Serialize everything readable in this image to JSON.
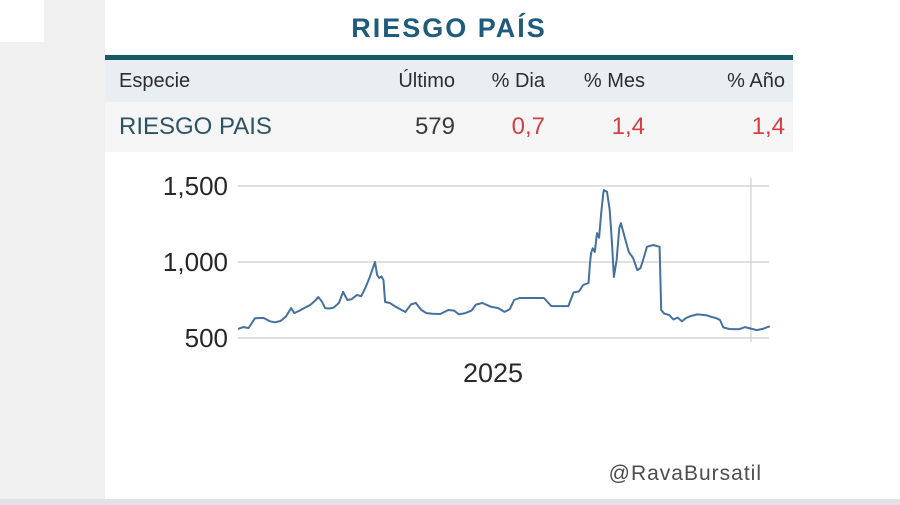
{
  "page": {
    "title": "RIESGO PAÍS",
    "credit": "@RavaBursatil"
  },
  "colors": {
    "accent_teal": "#165864",
    "title_blue": "#1e5b7c",
    "negative_red": "#d24044",
    "line_blue": "#44719f",
    "grid_gray": "#cfcfcf",
    "header_bg": "#e9eef3",
    "row_bg": "#f5f5f6"
  },
  "table": {
    "columns": [
      "Especie",
      "Último",
      "% Dia",
      "% Mes",
      "% Año"
    ],
    "rows": [
      {
        "especie": "RIESGO PAIS",
        "ultimo": "579",
        "dia": "0,7",
        "mes": "1,4",
        "ano": "1,4"
      }
    ]
  },
  "chart_data": {
    "type": "line",
    "title": "RIESGO PAÍS",
    "xlabel": "2025",
    "ylabel": "",
    "ylim": [
      500,
      1500
    ],
    "yticks": [
      500,
      1000,
      1500
    ],
    "ytick_labels": [
      "500",
      "1,000",
      "1,500"
    ],
    "grid": true,
    "legend": false,
    "vline_frac": 0.966,
    "series": [
      {
        "name": "RIESGO PAIS",
        "points": [
          [
            0.0,
            560
          ],
          [
            0.01,
            572
          ],
          [
            0.02,
            566
          ],
          [
            0.032,
            630
          ],
          [
            0.048,
            632
          ],
          [
            0.06,
            610
          ],
          [
            0.07,
            603
          ],
          [
            0.08,
            612
          ],
          [
            0.09,
            640
          ],
          [
            0.1,
            697
          ],
          [
            0.106,
            664
          ],
          [
            0.116,
            680
          ],
          [
            0.126,
            700
          ],
          [
            0.136,
            717
          ],
          [
            0.145,
            745
          ],
          [
            0.151,
            770
          ],
          [
            0.158,
            740
          ],
          [
            0.164,
            697
          ],
          [
            0.172,
            694
          ],
          [
            0.18,
            700
          ],
          [
            0.19,
            730
          ],
          [
            0.198,
            803
          ],
          [
            0.206,
            750
          ],
          [
            0.214,
            755
          ],
          [
            0.224,
            783
          ],
          [
            0.232,
            775
          ],
          [
            0.24,
            830
          ],
          [
            0.248,
            900
          ],
          [
            0.254,
            960
          ],
          [
            0.258,
            1000
          ],
          [
            0.262,
            915
          ],
          [
            0.266,
            895
          ],
          [
            0.27,
            905
          ],
          [
            0.274,
            880
          ],
          [
            0.277,
            737
          ],
          [
            0.286,
            730
          ],
          [
            0.295,
            710
          ],
          [
            0.305,
            690
          ],
          [
            0.315,
            671
          ],
          [
            0.326,
            722
          ],
          [
            0.335,
            730
          ],
          [
            0.345,
            685
          ],
          [
            0.355,
            664
          ],
          [
            0.366,
            660
          ],
          [
            0.381,
            658
          ],
          [
            0.396,
            684
          ],
          [
            0.407,
            680
          ],
          [
            0.416,
            655
          ],
          [
            0.428,
            664
          ],
          [
            0.44,
            680
          ],
          [
            0.448,
            720
          ],
          [
            0.46,
            730
          ],
          [
            0.476,
            706
          ],
          [
            0.49,
            697
          ],
          [
            0.502,
            672
          ],
          [
            0.512,
            690
          ],
          [
            0.52,
            750
          ],
          [
            0.53,
            763
          ],
          [
            0.576,
            763
          ],
          [
            0.59,
            710
          ],
          [
            0.622,
            710
          ],
          [
            0.632,
            800
          ],
          [
            0.642,
            806
          ],
          [
            0.65,
            849
          ],
          [
            0.66,
            862
          ],
          [
            0.663,
            1000
          ],
          [
            0.665,
            1060
          ],
          [
            0.668,
            1090
          ],
          [
            0.672,
            1066
          ],
          [
            0.676,
            1190
          ],
          [
            0.68,
            1160
          ],
          [
            0.684,
            1322
          ],
          [
            0.688,
            1454
          ],
          [
            0.689,
            1474
          ],
          [
            0.695,
            1461
          ],
          [
            0.7,
            1342
          ],
          [
            0.704,
            1145
          ],
          [
            0.708,
            901
          ],
          [
            0.713,
            1013
          ],
          [
            0.718,
            1224
          ],
          [
            0.721,
            1256
          ],
          [
            0.728,
            1165
          ],
          [
            0.736,
            1066
          ],
          [
            0.744,
            1026
          ],
          [
            0.752,
            947
          ],
          [
            0.758,
            960
          ],
          [
            0.764,
            1026
          ],
          [
            0.77,
            1100
          ],
          [
            0.782,
            1112
          ],
          [
            0.794,
            1100
          ],
          [
            0.797,
            684
          ],
          [
            0.803,
            660
          ],
          [
            0.812,
            651
          ],
          [
            0.82,
            622
          ],
          [
            0.828,
            634
          ],
          [
            0.836,
            610
          ],
          [
            0.844,
            632
          ],
          [
            0.853,
            645
          ],
          [
            0.865,
            655
          ],
          [
            0.882,
            650
          ],
          [
            0.892,
            638
          ],
          [
            0.901,
            630
          ],
          [
            0.908,
            618
          ],
          [
            0.914,
            570
          ],
          [
            0.925,
            559
          ],
          [
            0.943,
            557
          ],
          [
            0.955,
            572
          ],
          [
            0.966,
            562
          ],
          [
            0.977,
            552
          ],
          [
            0.988,
            560
          ],
          [
            1.0,
            575
          ]
        ]
      }
    ]
  }
}
